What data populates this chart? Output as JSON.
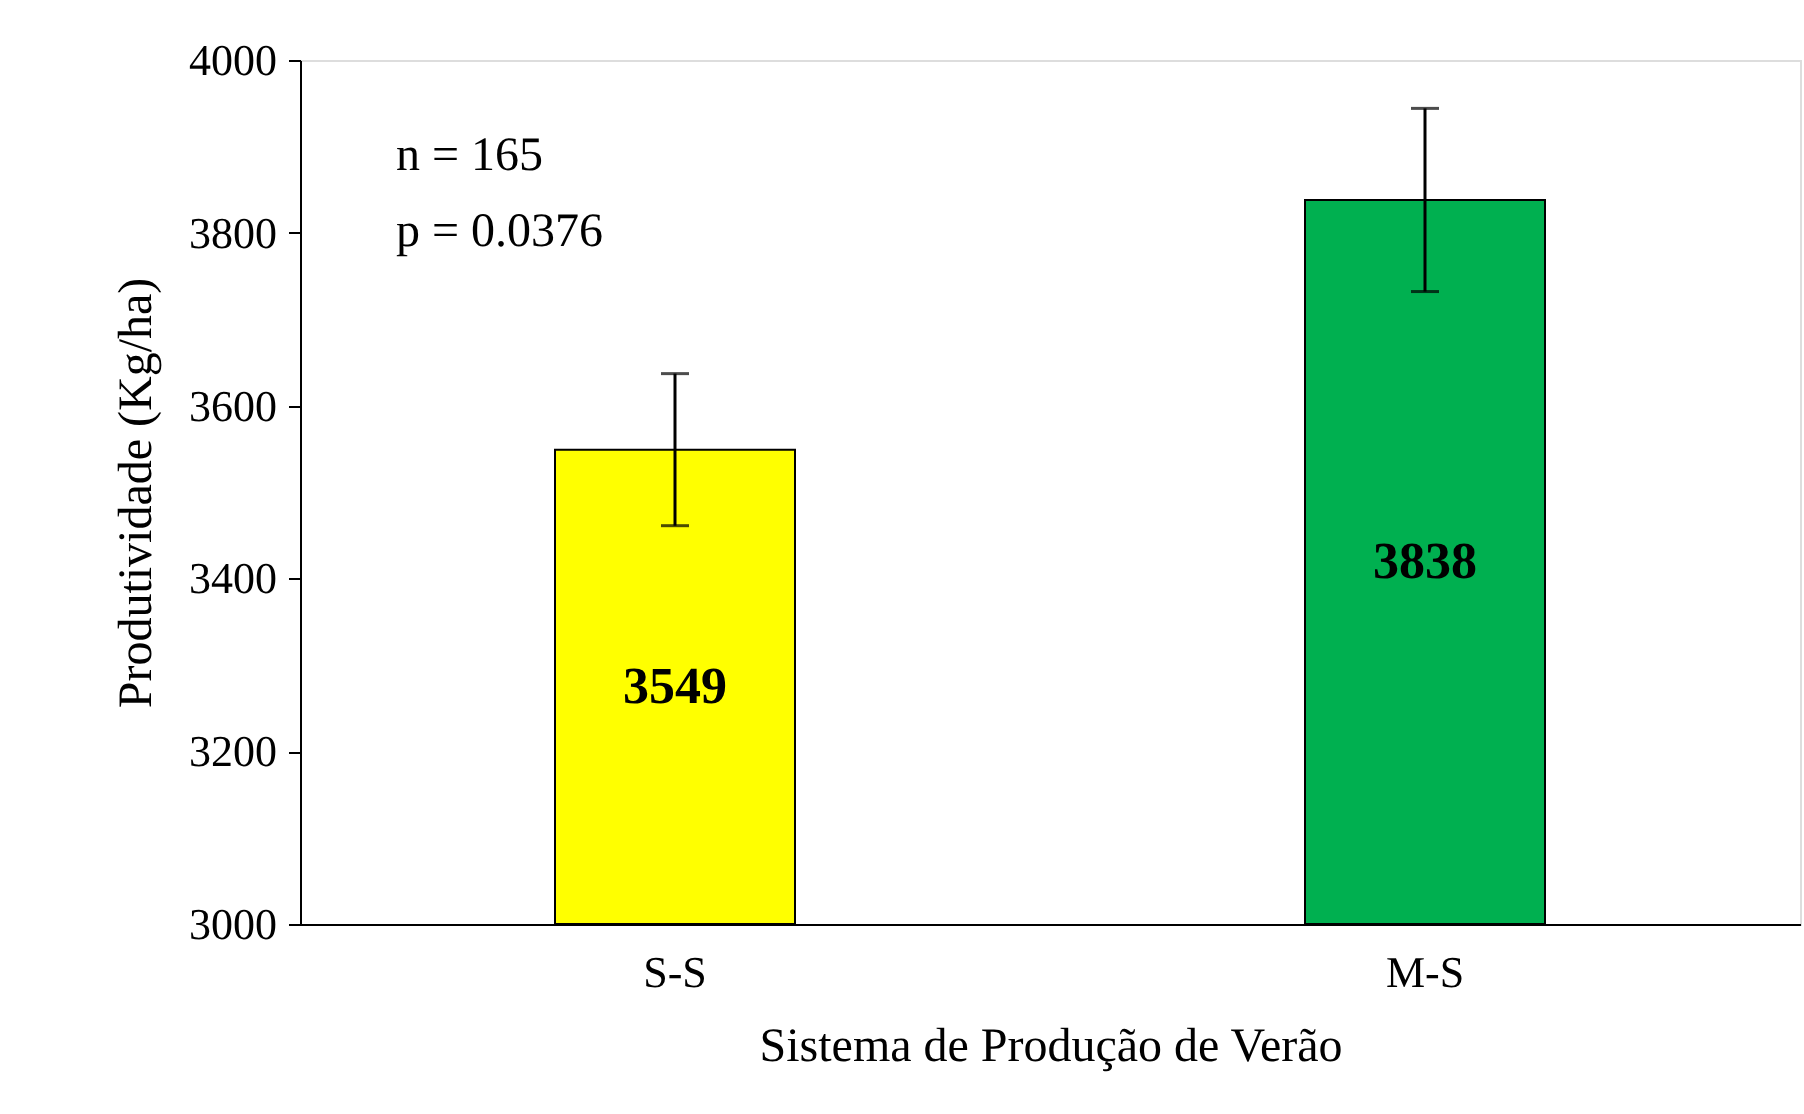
{
  "chart_data": {
    "type": "bar",
    "xlabel": "Sistema de Produção de Verão",
    "ylabel": "Produtividade (Kg/ha)",
    "categories": [
      "S-S",
      "M-S"
    ],
    "values": [
      3549,
      3838
    ],
    "colors": [
      "#ffff00",
      "#00b050"
    ],
    "errors": [
      88,
      106
    ],
    "ylim": [
      3000,
      4000
    ],
    "yticks": [
      3000,
      3200,
      3400,
      3600,
      3800,
      4000
    ],
    "grid": false,
    "data_labels": true,
    "annotations": [
      "n = 165",
      "p = 0.0376"
    ]
  }
}
